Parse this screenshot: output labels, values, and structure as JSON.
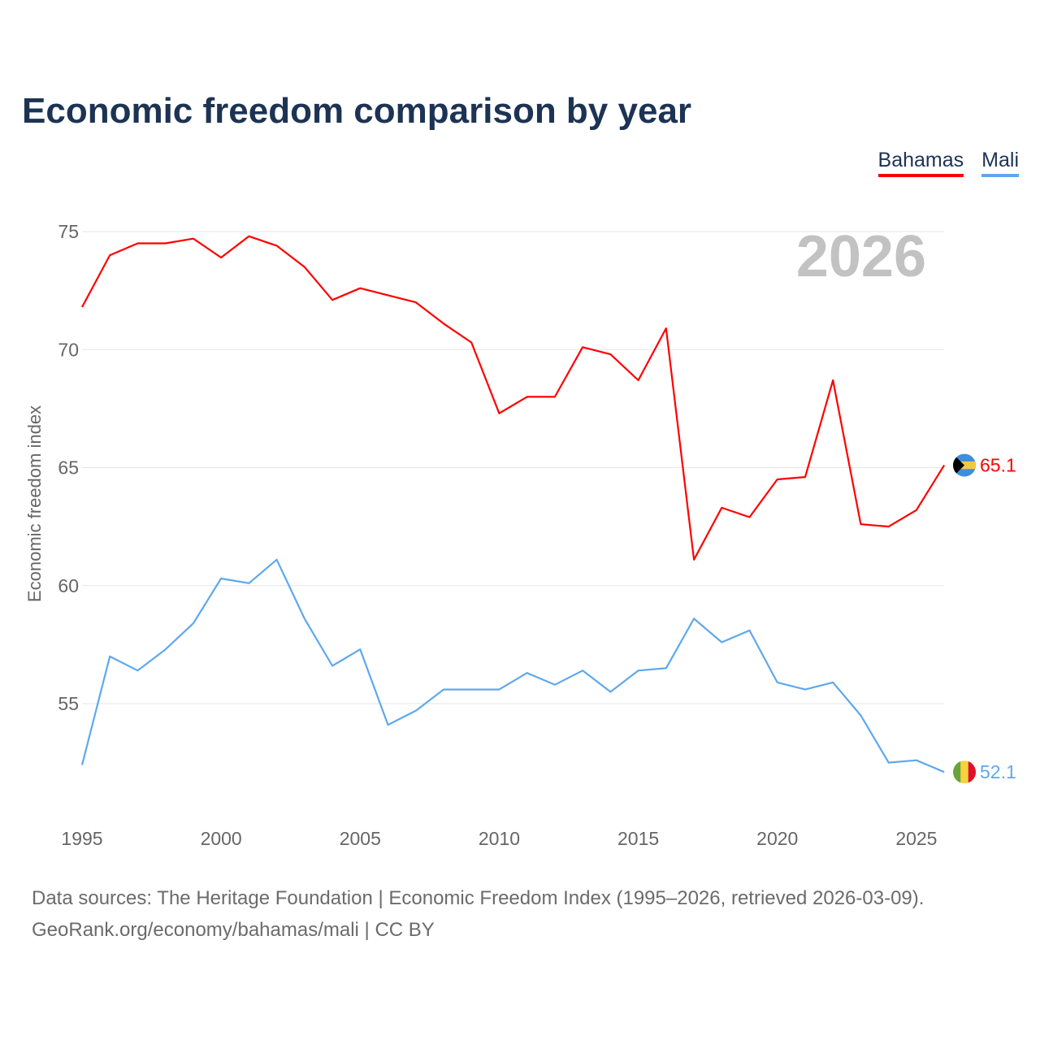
{
  "title": "Economic freedom comparison by year",
  "footer": {
    "line1": "Data sources: The Heritage Foundation | Economic Freedom Index (1995–2026, retrieved 2026-03-09).",
    "line2": "GeoRank.org/economy/bahamas/mali | CC BY"
  },
  "chart_data": {
    "type": "line",
    "title": "Economic freedom comparison by year",
    "xlabel": "",
    "ylabel": "Economic freedom index",
    "year_watermark": "2026",
    "xlim": [
      1995,
      2026
    ],
    "ylim": [
      51,
      77
    ],
    "yticks": [
      55,
      60,
      65,
      70,
      75
    ],
    "xticks": [
      1995,
      2000,
      2005,
      2010,
      2015,
      2020,
      2025
    ],
    "grid": true,
    "legend_position": "top-right",
    "x": [
      1995,
      1996,
      1997,
      1998,
      1999,
      2000,
      2001,
      2002,
      2003,
      2004,
      2005,
      2006,
      2007,
      2008,
      2009,
      2010,
      2011,
      2012,
      2013,
      2014,
      2015,
      2016,
      2017,
      2018,
      2019,
      2020,
      2021,
      2022,
      2023,
      2024,
      2025,
      2026
    ],
    "series": [
      {
        "name": "Bahamas",
        "color": "#ff0000",
        "end_label": "65.1",
        "values": [
          71.8,
          74.0,
          74.5,
          74.5,
          74.7,
          73.9,
          74.8,
          74.4,
          73.5,
          72.1,
          72.6,
          72.3,
          72.0,
          71.1,
          70.3,
          67.3,
          68.0,
          68.0,
          70.1,
          69.8,
          68.7,
          70.9,
          61.1,
          63.3,
          62.9,
          64.5,
          64.6,
          68.7,
          62.6,
          62.5,
          63.2,
          65.1
        ]
      },
      {
        "name": "Mali",
        "color": "#5ea8ee",
        "end_label": "52.1",
        "values": [
          52.4,
          57.0,
          56.4,
          57.3,
          58.4,
          60.3,
          60.1,
          61.1,
          58.6,
          56.6,
          57.3,
          54.1,
          54.7,
          55.6,
          55.6,
          55.6,
          56.3,
          55.8,
          56.4,
          55.5,
          56.4,
          56.5,
          58.6,
          57.6,
          58.1,
          55.9,
          55.6,
          55.9,
          54.5,
          52.5,
          52.6,
          52.1
        ]
      }
    ]
  }
}
